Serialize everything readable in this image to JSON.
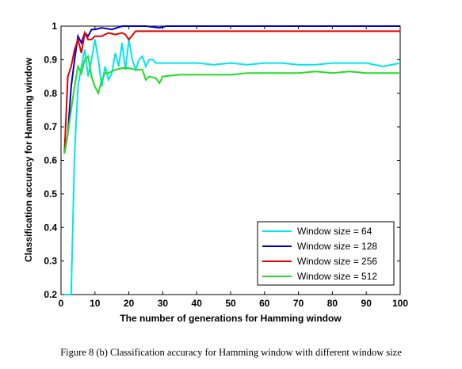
{
  "caption": "Figure 8 (b) Classification accuracy for Hamming window with different window size",
  "chart_data": {
    "type": "line",
    "title": "",
    "xlabel": "The number of generations for Hamming window",
    "ylabel": "Classification accuracy for Hamming window",
    "xlim": [
      0,
      100
    ],
    "ylim": [
      0.2,
      1
    ],
    "xticks": [
      0,
      10,
      20,
      30,
      40,
      50,
      60,
      70,
      80,
      90,
      100
    ],
    "yticks": [
      0.2,
      0.3,
      0.4,
      0.5,
      0.6,
      0.7,
      0.8,
      0.9,
      1
    ],
    "ytick_labels": [
      "0.2",
      "0.3",
      "0.4",
      "0.5",
      "0.6",
      "0.7",
      "0.8",
      "0.9",
      "1"
    ],
    "grid": false,
    "legend_position": "bottom-right",
    "series": [
      {
        "name": "Window size = 64",
        "color": "#00e5ee",
        "x": [
          1,
          3,
          4,
          5,
          6,
          7,
          8,
          9,
          10,
          11,
          12,
          13,
          14,
          15,
          16,
          17,
          18,
          19,
          20,
          21,
          22,
          23,
          24,
          25,
          26,
          27,
          28,
          30,
          35,
          40,
          45,
          50,
          55,
          60,
          65,
          70,
          75,
          80,
          85,
          90,
          95,
          100
        ],
        "values": [
          0.2,
          0.2,
          0.62,
          0.82,
          0.88,
          0.93,
          0.85,
          0.9,
          0.96,
          0.9,
          0.82,
          0.88,
          0.84,
          0.86,
          0.92,
          0.88,
          0.95,
          0.87,
          0.96,
          0.9,
          0.87,
          0.9,
          0.91,
          0.88,
          0.9,
          0.9,
          0.89,
          0.89,
          0.89,
          0.89,
          0.885,
          0.89,
          0.885,
          0.89,
          0.89,
          0.885,
          0.885,
          0.89,
          0.89,
          0.89,
          0.88,
          0.89
        ]
      },
      {
        "name": "Window size = 128",
        "color": "#0000cd",
        "x": [
          1,
          2,
          3,
          4,
          5,
          6,
          7,
          8,
          9,
          10,
          12,
          15,
          18,
          20,
          25,
          29,
          31,
          35,
          40,
          50,
          60,
          70,
          80,
          90,
          100
        ],
        "values": [
          0.62,
          0.68,
          0.82,
          0.9,
          0.97,
          0.95,
          0.98,
          0.97,
          0.99,
          0.99,
          0.995,
          0.99,
          1,
          1,
          1,
          0.995,
          1,
          1,
          1,
          1,
          1,
          1,
          1,
          1,
          1
        ]
      },
      {
        "name": "Window size = 256",
        "color": "#e00000",
        "x": [
          1,
          2,
          3,
          4,
          5,
          6,
          7,
          8,
          9,
          10,
          11,
          12,
          14,
          16,
          18,
          19,
          20,
          22,
          25,
          30,
          40,
          50,
          60,
          70,
          80,
          90,
          100
        ],
        "values": [
          0.62,
          0.85,
          0.88,
          0.93,
          0.96,
          0.92,
          0.98,
          0.96,
          0.96,
          0.97,
          0.97,
          0.97,
          0.98,
          0.975,
          0.98,
          0.975,
          0.96,
          0.985,
          0.985,
          0.985,
          0.985,
          0.985,
          0.985,
          0.985,
          0.985,
          0.985,
          0.985
        ]
      },
      {
        "name": "Window size = 512",
        "color": "#22dd22",
        "x": [
          1,
          2,
          3,
          4,
          5,
          6,
          7,
          8,
          9,
          10,
          11,
          12,
          13,
          14,
          16,
          18,
          20,
          22,
          24,
          25,
          26,
          28,
          29,
          30,
          35,
          40,
          45,
          50,
          55,
          60,
          65,
          70,
          75,
          80,
          85,
          90,
          95,
          100
        ],
        "values": [
          0.62,
          0.68,
          0.75,
          0.82,
          0.88,
          0.86,
          0.9,
          0.91,
          0.85,
          0.82,
          0.8,
          0.84,
          0.86,
          0.86,
          0.87,
          0.875,
          0.875,
          0.87,
          0.87,
          0.84,
          0.85,
          0.845,
          0.83,
          0.85,
          0.855,
          0.855,
          0.855,
          0.855,
          0.86,
          0.86,
          0.86,
          0.86,
          0.865,
          0.86,
          0.865,
          0.86,
          0.86,
          0.86
        ]
      }
    ]
  }
}
